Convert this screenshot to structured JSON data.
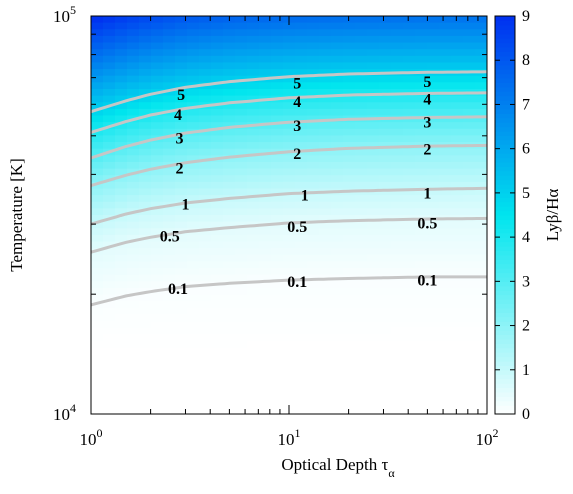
{
  "chart_data": {
    "type": "heatmap",
    "title": "",
    "xlabel": "Optical Depth τα",
    "ylabel": "Temperature [K]",
    "colorbar_label": "Lyβ/Hα",
    "x_scale": "log",
    "y_scale": "log",
    "xlim": [
      1,
      100
    ],
    "ylim": [
      10000,
      100000
    ],
    "x_ticks": [
      {
        "value": 1,
        "base": "10",
        "exp": "0"
      },
      {
        "value": 10,
        "base": "10",
        "exp": "1"
      },
      {
        "value": 100,
        "base": "10",
        "exp": "2"
      }
    ],
    "y_ticks": [
      {
        "value": 10000,
        "base": "10",
        "exp": "4"
      },
      {
        "value": 100000,
        "base": "10",
        "exp": "5"
      }
    ],
    "colorbar": {
      "range": [
        0,
        9
      ],
      "ticks": [
        "0",
        "1",
        "2",
        "3",
        "4",
        "5",
        "6",
        "7",
        "8",
        "9"
      ],
      "low_color": "#ffffff",
      "mid_color": "#00e5ee",
      "high_color": "#0030f0"
    },
    "contours": [
      {
        "level": "0.1",
        "points": [
          [
            1,
            18800
          ],
          [
            1.5,
            19800
          ],
          [
            2,
            20300
          ],
          [
            3,
            20900
          ],
          [
            5,
            21300
          ],
          [
            10,
            21700
          ],
          [
            20,
            21900
          ],
          [
            50,
            22100
          ],
          [
            100,
            22100
          ]
        ],
        "labels": [
          [
            2.75,
            20700
          ],
          [
            11,
            21600
          ],
          [
            50,
            21800
          ]
        ]
      },
      {
        "level": "0.5",
        "points": [
          [
            1,
            25500
          ],
          [
            1.5,
            27000
          ],
          [
            2,
            27800
          ],
          [
            3,
            28700
          ],
          [
            5,
            29400
          ],
          [
            10,
            30200
          ],
          [
            20,
            30600
          ],
          [
            50,
            30900
          ],
          [
            100,
            31000
          ]
        ],
        "labels": [
          [
            2.5,
            28100
          ],
          [
            11,
            29700
          ],
          [
            50,
            30300
          ]
        ]
      },
      {
        "level": "1",
        "points": [
          [
            1,
            30000
          ],
          [
            1.5,
            31800
          ],
          [
            2,
            32800
          ],
          [
            3,
            33900
          ],
          [
            5,
            34800
          ],
          [
            10,
            35800
          ],
          [
            20,
            36300
          ],
          [
            50,
            36700
          ],
          [
            100,
            36900
          ]
        ],
        "labels": [
          [
            3,
            33800
          ],
          [
            12,
            35600
          ],
          [
            50,
            36000
          ]
        ]
      },
      {
        "level": "2",
        "points": [
          [
            1,
            37500
          ],
          [
            1.5,
            39800
          ],
          [
            2,
            41200
          ],
          [
            3,
            42800
          ],
          [
            5,
            44200
          ],
          [
            10,
            45600
          ],
          [
            20,
            46500
          ],
          [
            50,
            47100
          ],
          [
            100,
            47300
          ]
        ],
        "labels": [
          [
            2.8,
            41600
          ],
          [
            11,
            45300
          ],
          [
            50,
            46400
          ]
        ]
      },
      {
        "level": "3",
        "points": [
          [
            1,
            44000
          ],
          [
            1.5,
            47000
          ],
          [
            2,
            48800
          ],
          [
            3,
            50800
          ],
          [
            5,
            52500
          ],
          [
            10,
            54100
          ],
          [
            20,
            55000
          ],
          [
            50,
            55600
          ],
          [
            100,
            55800
          ]
        ],
        "labels": [
          [
            2.8,
            49500
          ],
          [
            11,
            53200
          ],
          [
            50,
            54300
          ]
        ]
      },
      {
        "level": "4",
        "points": [
          [
            1,
            51000
          ],
          [
            1.5,
            54300
          ],
          [
            2,
            56400
          ],
          [
            3,
            58600
          ],
          [
            5,
            60500
          ],
          [
            10,
            62300
          ],
          [
            20,
            63300
          ],
          [
            50,
            63900
          ],
          [
            100,
            64100
          ]
        ],
        "labels": [
          [
            2.75,
            56800
          ],
          [
            11,
            61100
          ],
          [
            50,
            62000
          ]
        ]
      },
      {
        "level": "5",
        "points": [
          [
            1,
            57500
          ],
          [
            1.5,
            61200
          ],
          [
            2,
            63600
          ],
          [
            3,
            66200
          ],
          [
            5,
            68400
          ],
          [
            10,
            70400
          ],
          [
            20,
            71500
          ],
          [
            50,
            72200
          ],
          [
            100,
            72400
          ]
        ],
        "labels": [
          [
            2.85,
            63600
          ],
          [
            11,
            68100
          ],
          [
            50,
            68700
          ]
        ]
      }
    ],
    "grid": false,
    "legend": "none"
  }
}
